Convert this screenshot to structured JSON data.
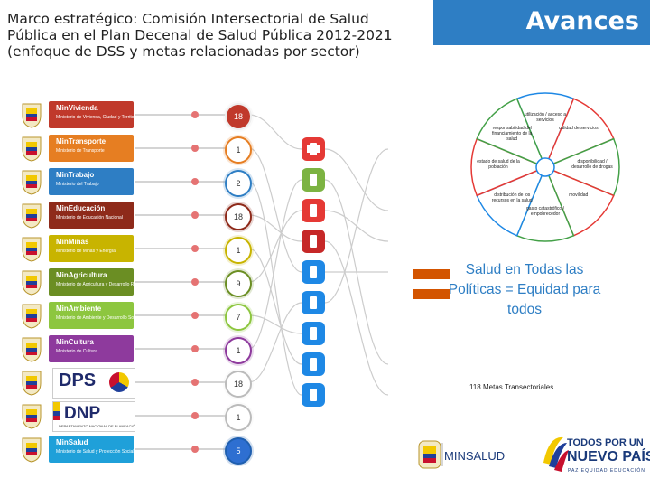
{
  "title": {
    "line1": "Marco estratégico: Comisión Intersectorial de Salud",
    "line2": "Pública en el Plan Decenal de Salud Pública 2012-2021",
    "line3": "(enfoque de DSS y metas relacionadas por sector)"
  },
  "header_label": "Avances",
  "ministries": [
    {
      "name": "MinVivienda",
      "sub": "Ministerio de Vivienda, Ciudad y Territorio",
      "color": "#C0392B",
      "count": "18",
      "count_color": "#ffffff"
    },
    {
      "name": "MinTransporte",
      "sub": "Ministerio de Transporte",
      "color": "#E67E22",
      "count": "1",
      "count_color": "#E67E22"
    },
    {
      "name": "MinTrabajo",
      "sub": "Ministerio del Trabajo",
      "color": "#2E7EC4",
      "count": "2",
      "count_color": "#2E7EC4"
    },
    {
      "name": "MinEducación",
      "sub": "Ministerio de Educación Nacional",
      "color": "#8E2A1A",
      "count": "18",
      "count_color": "#8E2A1A"
    },
    {
      "name": "MinMinas",
      "sub": "Ministerio de Minas y Energía",
      "color": "#C8B400",
      "count": "1",
      "count_color": "#C8B400"
    },
    {
      "name": "MinAgricultura",
      "sub": "Ministerio de Agricultura y Desarrollo Rural",
      "color": "#6B8E23",
      "count": "9",
      "count_color": "#6B8E23"
    },
    {
      "name": "MinAmbiente",
      "sub": "Ministerio de Ambiente y Desarrollo Sostenible",
      "color": "#8DC63F",
      "count": "7",
      "count_color": "#8DC63F"
    },
    {
      "name": "MinCultura",
      "sub": "Ministerio de Cultura",
      "color": "#8E3A9D",
      "count": "1",
      "count_color": "#8E3A9D"
    },
    {
      "name": "DPS",
      "sub": "",
      "color": "#ffffff",
      "count": "18",
      "count_color": "#ffffff"
    },
    {
      "name": "DNP",
      "sub": "DEPARTAMENTO NACIONAL DE PLANEACIÓN",
      "color": "#ffffff",
      "count": "1",
      "count_color": "#ffffff"
    },
    {
      "name": "MinSalud",
      "sub": "Ministerio de Salud y Protección Social",
      "color": "#1FA0D9",
      "count": "5",
      "count_color": "#1F5FAF"
    }
  ],
  "sector_icons": [
    {
      "icon": "health-cross-icon",
      "color": "#E53935"
    },
    {
      "icon": "green-tag-icon",
      "color": "#7CB342"
    },
    {
      "icon": "hand-icon",
      "color": "#E53935"
    },
    {
      "icon": "home-icon",
      "color": "#C62828"
    },
    {
      "icon": "phone-icon",
      "color": "#1E88E5"
    },
    {
      "icon": "person-run-icon",
      "color": "#1E88E5"
    },
    {
      "icon": "arrows-icon",
      "color": "#1E88E5"
    },
    {
      "icon": "arrow-left-icon",
      "color": "#1E88E5"
    },
    {
      "icon": "pill-icon",
      "color": "#1E88E5"
    }
  ],
  "wheel_segments": [
    {
      "label": "utilización / acceso a servicios",
      "color": "#1E88E5"
    },
    {
      "label": "calidad de servicios",
      "color": "#E53935"
    },
    {
      "label": "disponibilidad / desarrollo de drogas",
      "color": "#43A047"
    },
    {
      "label": "movilidad",
      "color": "#E53935"
    },
    {
      "label": "gasto catastrófico / empobrecedor",
      "color": "#43A047"
    },
    {
      "label": "distribución de los recursos en la salud",
      "color": "#1E88E5"
    },
    {
      "label": "estado de salud de la población",
      "color": "#E53935"
    },
    {
      "label": "responsabilidad del financiamiento de la salud",
      "color": "#43A047"
    }
  ],
  "slogan": "Salud en Todas las Políticas = Equidad para todos",
  "metas_text": "118 Metas Transectoriales",
  "footer": {
    "minsalud": "MINSALUD",
    "todos_line1": "TODOS POR UN",
    "todos_line2": "NUEVO PAÍS",
    "todos_line3": "PAZ EQUIDAD EDUCACIÓN"
  },
  "equal_sign_color": "#D35400"
}
